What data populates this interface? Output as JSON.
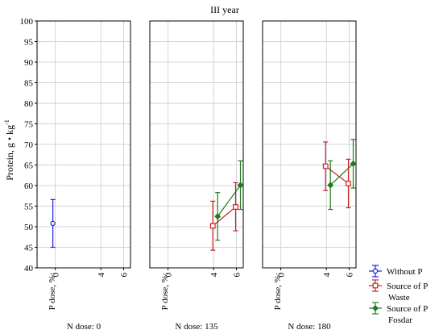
{
  "chart_data": {
    "type": "scatter",
    "title": "III year",
    "ylabel": "Protein, g • kg",
    "ylabel_sup": "-1",
    "ylim": [
      40,
      100
    ],
    "yticks": [
      40,
      45,
      50,
      55,
      60,
      65,
      70,
      75,
      80,
      85,
      90,
      95,
      100
    ],
    "x_axis_label": "P dose, %:",
    "x_ticks": [
      "0",
      "4",
      "6"
    ],
    "error_bars": true,
    "grid": true,
    "panels": [
      {
        "label": "N dose: 0",
        "series": [
          {
            "key": "without",
            "points": [
              {
                "x": 0,
                "y": 50.8,
                "low": 45.0,
                "high": 56.6
              }
            ]
          }
        ]
      },
      {
        "label": "N dose: 135",
        "series": [
          {
            "key": "waste",
            "points": [
              {
                "x": 4,
                "y": 50.2,
                "low": 44.3,
                "high": 56.2
              },
              {
                "x": 6,
                "y": 54.8,
                "low": 49.0,
                "high": 60.7
              }
            ]
          },
          {
            "key": "fosdar",
            "points": [
              {
                "x": 4,
                "y": 52.5,
                "low": 46.7,
                "high": 58.3
              },
              {
                "x": 6,
                "y": 60.1,
                "low": 54.2,
                "high": 66.0
              }
            ]
          }
        ]
      },
      {
        "label": "N dose: 180",
        "series": [
          {
            "key": "waste",
            "points": [
              {
                "x": 4,
                "y": 64.7,
                "low": 58.8,
                "high": 70.6
              },
              {
                "x": 6,
                "y": 60.5,
                "low": 54.6,
                "high": 66.4
              }
            ]
          },
          {
            "key": "fosdar",
            "points": [
              {
                "x": 4,
                "y": 60.1,
                "low": 54.2,
                "high": 66.0
              },
              {
                "x": 6,
                "y": 65.3,
                "low": 59.4,
                "high": 71.2
              }
            ]
          }
        ]
      }
    ],
    "legend": {
      "placement": "bottom-right",
      "entries": [
        {
          "key": "without",
          "label": "Without P",
          "color": "#1a1ae6",
          "marker": "circle"
        },
        {
          "key": "waste",
          "label": "Source of P",
          "label2": "Waste",
          "color": "#cc2020",
          "marker": "square"
        },
        {
          "key": "fosdar",
          "label": "Source of P",
          "label2": "Fosdar",
          "color": "#1e7a1e",
          "marker": "diamond"
        }
      ]
    }
  }
}
